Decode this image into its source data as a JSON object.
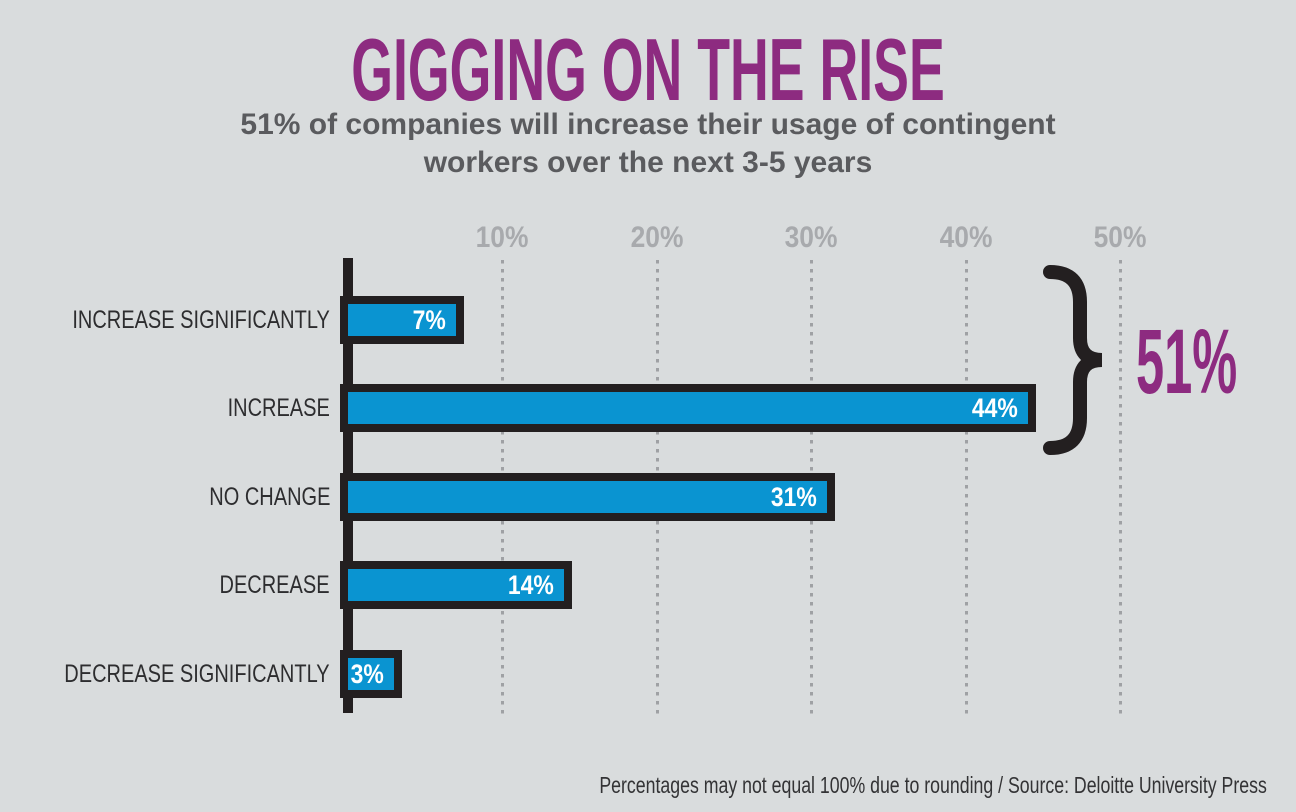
{
  "title": "GIGGING ON THE RISE",
  "subtitle": {
    "line1": "51% of companies will increase their usage of contingent",
    "line2": "workers over the next 3-5 years"
  },
  "chart_data": {
    "type": "bar",
    "orientation": "horizontal",
    "title": "GIGGING ON THE RISE",
    "subtitle": "51% of companies will increase their usage of contingent workers over the next 3-5 years",
    "categories": [
      "INCREASE SIGNIFICANTLY",
      "INCREASE",
      "NO CHANGE",
      "DECREASE",
      "DECREASE SIGNIFICANTLY"
    ],
    "values": [
      7,
      44,
      31,
      14,
      3
    ],
    "value_labels": [
      "7%",
      "44%",
      "31%",
      "14%",
      "3%"
    ],
    "x_ticks": [
      "10%",
      "20%",
      "30%",
      "40%",
      "50%"
    ],
    "x_tick_values": [
      10,
      20,
      30,
      40,
      50
    ],
    "xlim": [
      0,
      52
    ],
    "grid": "dotted-vertical",
    "legend": "none",
    "annotation": {
      "label": "51%",
      "symbol": "curly-brace",
      "covers": [
        "INCREASE SIGNIFICANTLY",
        "INCREASE"
      ]
    }
  },
  "footer": "Percentages may not equal 100% due to rounding / Source: Deloitte University Press",
  "colors": {
    "background": "#d9dcdd",
    "title_purple": "#8d2b80",
    "subtitle_gray": "#5a5b5e",
    "bar_blue": "#0a94d1",
    "chart_black": "#231f20",
    "tick_gray": "#a8aaad",
    "dot_gray": "#9fa1a4",
    "category_label": "#2d2d2f",
    "value_text": "#ffffff",
    "footer_text": "#333335"
  }
}
